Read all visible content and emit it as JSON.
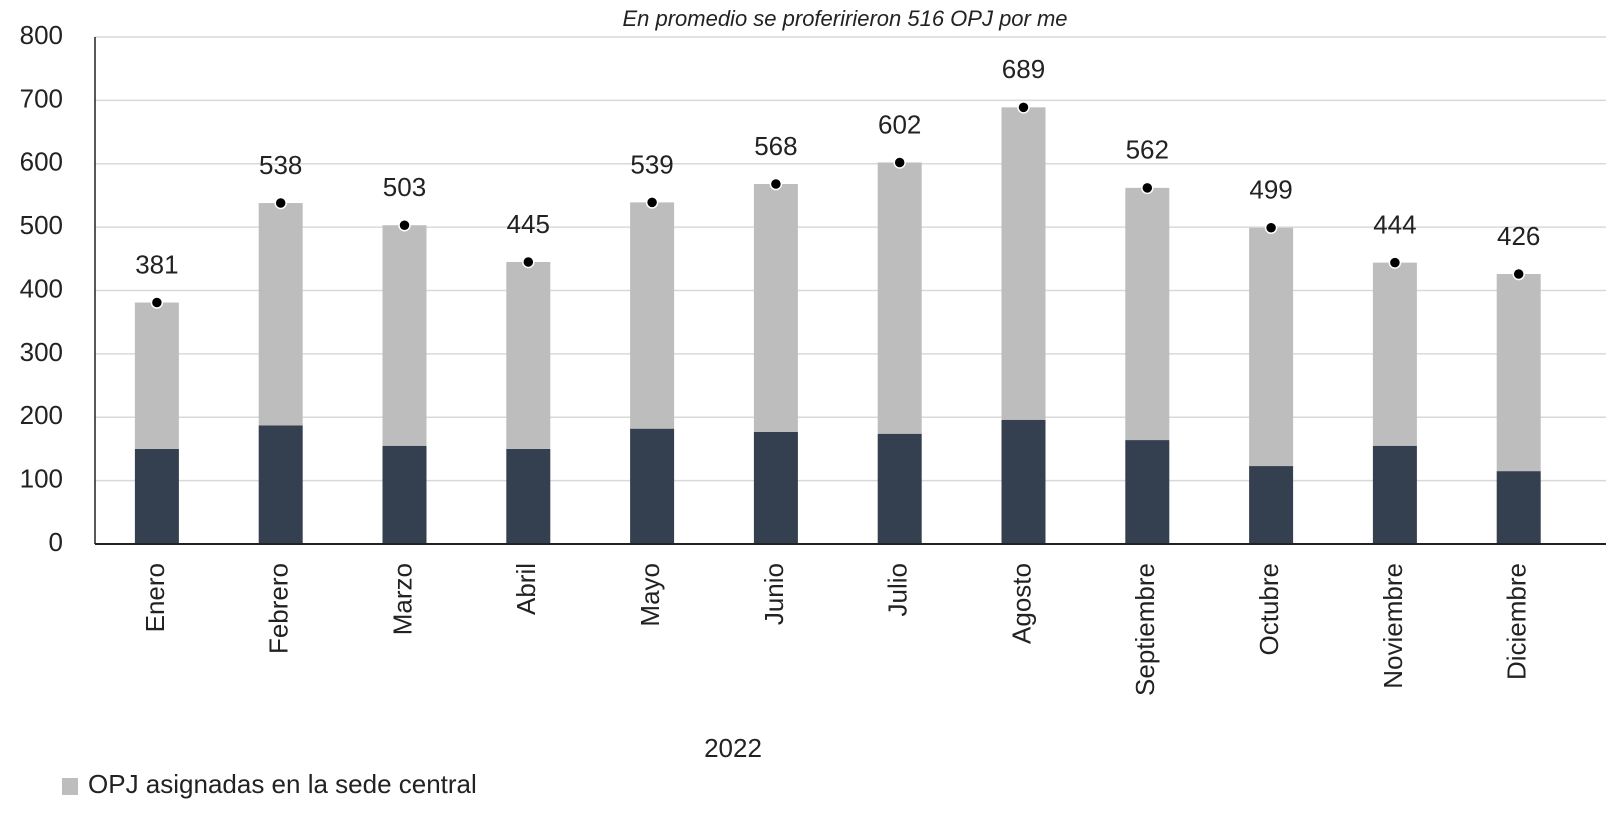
{
  "chart_data": {
    "type": "bar",
    "stacked": true,
    "title": "En promedio se proferirieron 516 OPJ por me",
    "x_label": "2022",
    "categories": [
      "Enero",
      "Febrero",
      "Marzo",
      "Abril",
      "Mayo",
      "Junio",
      "Julio",
      "Agosto",
      "Septiembre",
      "Octubre",
      "Noviembre",
      "Diciembre"
    ],
    "series": [
      {
        "color": "#343f50",
        "values": [
          150,
          187,
          155,
          150,
          182,
          177,
          174,
          196,
          164,
          123,
          155,
          115
        ]
      },
      {
        "name": "OPJ asignadas en la sede central",
        "color": "#bdbdbd",
        "values": [
          231,
          351,
          348,
          295,
          357,
          391,
          428,
          493,
          398,
          376,
          289,
          311
        ]
      }
    ],
    "totals": {
      "color": "#000000",
      "values": [
        381,
        538,
        503,
        445,
        539,
        568,
        602,
        689,
        562,
        499,
        444,
        426
      ]
    },
    "ylim": [
      0,
      800
    ],
    "yticks": [
      0,
      100,
      200,
      300,
      400,
      500,
      600,
      700,
      800
    ],
    "grid": true
  }
}
